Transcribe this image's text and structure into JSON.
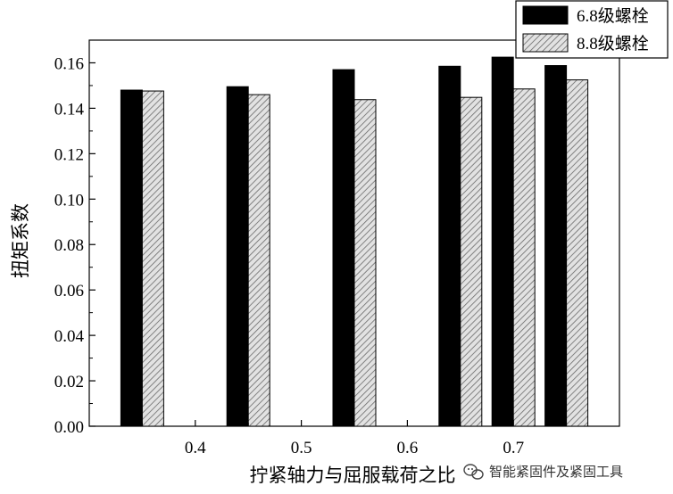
{
  "chart_data": {
    "type": "bar",
    "xlabel": "拧紧轴力与屈服载荷之比",
    "ylabel": "扭矩系数",
    "ylim": [
      0.0,
      0.17
    ],
    "yticks": [
      "0.00",
      "0.02",
      "0.04",
      "0.06",
      "0.08",
      "0.10",
      "0.12",
      "0.14",
      "0.16"
    ],
    "xlim": [
      0.3,
      0.8
    ],
    "xticks": [
      "0.4",
      "0.5",
      "0.6",
      "0.7"
    ],
    "groups": [
      0.35,
      0.45,
      0.55,
      0.65,
      0.7,
      0.75
    ],
    "legend_position": "top-right",
    "series": [
      {
        "name": "6.8级螺栓",
        "color": "#000000",
        "fill": "solid",
        "values": [
          0.148,
          0.1495,
          0.157,
          0.1585,
          0.1625,
          0.1588
        ]
      },
      {
        "name": "8.8级螺栓",
        "color": "#bdbdbd",
        "fill": "hatch",
        "values": [
          0.1476,
          0.146,
          0.1438,
          0.1448,
          0.1485,
          0.1525
        ]
      }
    ]
  },
  "watermark": {
    "icon": "wechat-icon",
    "text": "智能紧固件及紧固工具"
  }
}
